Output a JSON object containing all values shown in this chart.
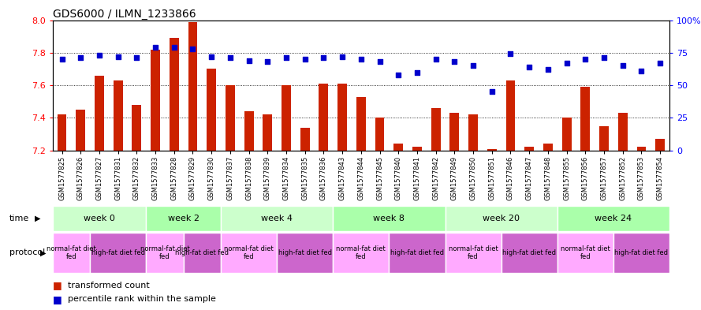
{
  "title": "GDS6000 / ILMN_1233866",
  "samples": [
    "GSM1577825",
    "GSM1577826",
    "GSM1577827",
    "GSM1577831",
    "GSM1577832",
    "GSM1577833",
    "GSM1577828",
    "GSM1577829",
    "GSM1577830",
    "GSM1577837",
    "GSM1577838",
    "GSM1577839",
    "GSM1577834",
    "GSM1577835",
    "GSM1577836",
    "GSM1577843",
    "GSM1577844",
    "GSM1577845",
    "GSM1577840",
    "GSM1577841",
    "GSM1577842",
    "GSM1577849",
    "GSM1577850",
    "GSM1577851",
    "GSM1577846",
    "GSM1577847",
    "GSM1577848",
    "GSM1577855",
    "GSM1577856",
    "GSM1577857",
    "GSM1577852",
    "GSM1577853",
    "GSM1577854"
  ],
  "bar_values": [
    7.42,
    7.45,
    7.66,
    7.63,
    7.48,
    7.82,
    7.89,
    7.99,
    7.7,
    7.6,
    7.44,
    7.42,
    7.6,
    7.34,
    7.61,
    7.61,
    7.53,
    7.4,
    7.24,
    7.22,
    7.46,
    7.43,
    7.42,
    7.21,
    7.63,
    7.22,
    7.24,
    7.4,
    7.59,
    7.35,
    7.43,
    7.22,
    7.27
  ],
  "percentile_values": [
    70,
    71,
    73,
    72,
    71,
    79,
    79,
    78,
    72,
    71,
    69,
    68,
    71,
    70,
    71,
    72,
    70,
    68,
    58,
    60,
    70,
    68,
    65,
    45,
    74,
    64,
    62,
    67,
    70,
    71,
    65,
    61,
    67
  ],
  "ylim_left": [
    7.2,
    8.0
  ],
  "ylim_right": [
    0,
    100
  ],
  "yticks_left": [
    7.2,
    7.4,
    7.6,
    7.8,
    8.0
  ],
  "yticks_right": [
    0,
    25,
    50,
    75,
    100
  ],
  "bar_color": "#cc2200",
  "dot_color": "#0000cc",
  "background_color": "#ffffff",
  "time_groups": [
    {
      "label": "week 0",
      "start": 0,
      "end": 5,
      "color": "#ccffcc"
    },
    {
      "label": "week 2",
      "start": 5,
      "end": 9,
      "color": "#aaffaa"
    },
    {
      "label": "week 4",
      "start": 9,
      "end": 15,
      "color": "#ccffcc"
    },
    {
      "label": "week 8",
      "start": 15,
      "end": 21,
      "color": "#aaffaa"
    },
    {
      "label": "week 20",
      "start": 21,
      "end": 27,
      "color": "#ccffcc"
    },
    {
      "label": "week 24",
      "start": 27,
      "end": 33,
      "color": "#aaffaa"
    }
  ],
  "protocol_groups": [
    {
      "label": "normal-fat diet\nfed",
      "start": 0,
      "end": 2,
      "color": "#ffaaff"
    },
    {
      "label": "high-fat diet fed",
      "start": 2,
      "end": 5,
      "color": "#cc66cc"
    },
    {
      "label": "normal-fat diet\nfed",
      "start": 5,
      "end": 7,
      "color": "#ffaaff"
    },
    {
      "label": "high-fat diet fed",
      "start": 7,
      "end": 9,
      "color": "#cc66cc"
    },
    {
      "label": "normal-fat diet\nfed",
      "start": 9,
      "end": 12,
      "color": "#ffaaff"
    },
    {
      "label": "high-fat diet fed",
      "start": 12,
      "end": 15,
      "color": "#cc66cc"
    },
    {
      "label": "normal-fat diet\nfed",
      "start": 15,
      "end": 18,
      "color": "#ffaaff"
    },
    {
      "label": "high-fat diet fed",
      "start": 18,
      "end": 21,
      "color": "#cc66cc"
    },
    {
      "label": "normal-fat diet\nfed",
      "start": 21,
      "end": 24,
      "color": "#ffaaff"
    },
    {
      "label": "high-fat diet fed",
      "start": 24,
      "end": 27,
      "color": "#cc66cc"
    },
    {
      "label": "normal-fat diet\nfed",
      "start": 27,
      "end": 30,
      "color": "#ffaaff"
    },
    {
      "label": "high-fat diet fed",
      "start": 30,
      "end": 33,
      "color": "#cc66cc"
    }
  ]
}
